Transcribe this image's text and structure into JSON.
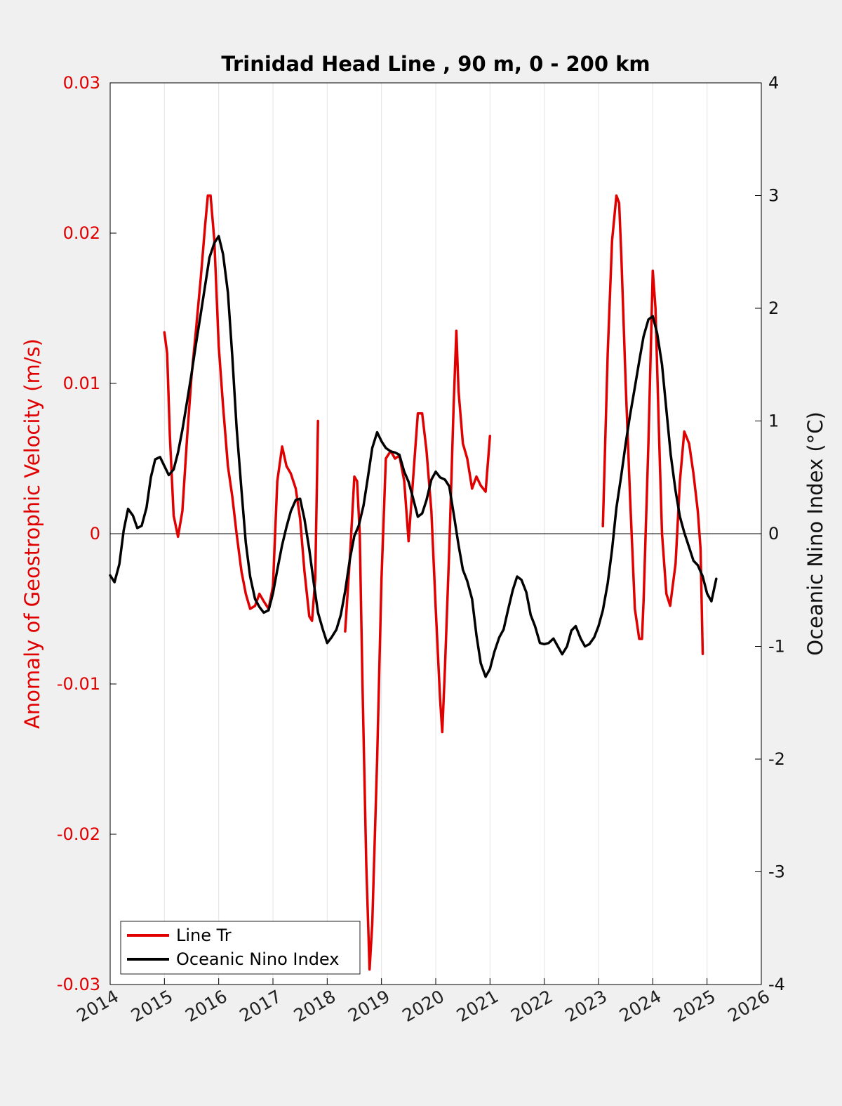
{
  "chart_data": {
    "type": "line",
    "title": "Trinidad Head Line , 90 m, 0 - 200 km",
    "xlim": [
      2014,
      2026
    ],
    "x_ticks": [
      "2014",
      "2015",
      "2016",
      "2017",
      "2018",
      "2019",
      "2020",
      "2021",
      "2022",
      "2023",
      "2024",
      "2025",
      "2026"
    ],
    "left_axis": {
      "label": "Anomaly of Geostrophic Velocity (m/s)",
      "ylim": [
        -0.03,
        0.03
      ],
      "ticks": [
        -0.03,
        -0.02,
        -0.01,
        0,
        0.01,
        0.02,
        0.03
      ],
      "tick_labels": [
        "-0.03",
        "-0.02",
        "-0.01",
        "0",
        "0.01",
        "0.02",
        "0.03"
      ],
      "color": "#e00000"
    },
    "right_axis": {
      "label": "Oceanic Nino Index (°C)",
      "ylim": [
        -4,
        4
      ],
      "ticks": [
        -4,
        -3,
        -2,
        -1,
        0,
        1,
        2,
        3,
        4
      ],
      "tick_labels": [
        "-4",
        "-3",
        "-2",
        "-1",
        "0",
        "1",
        "2",
        "3",
        "4"
      ],
      "color": "#000000"
    },
    "grid": "vertical",
    "zero_line": true,
    "legend": {
      "placement": "bottom-left",
      "entries": [
        "Line Tr",
        "Oceanic Nino Index"
      ]
    },
    "series": [
      {
        "name": "Line Tr",
        "axis": "left",
        "color": "#e00000",
        "segments": [
          [
            [
              2015.0,
              0.0134
            ],
            [
              2015.05,
              0.012
            ],
            [
              2015.1,
              0.0065
            ],
            [
              2015.17,
              0.0012
            ],
            [
              2015.25,
              -0.0002
            ],
            [
              2015.33,
              0.0015
            ],
            [
              2015.42,
              0.0065
            ],
            [
              2015.5,
              0.0105
            ],
            [
              2015.58,
              0.0135
            ],
            [
              2015.67,
              0.017
            ],
            [
              2015.75,
              0.0205
            ],
            [
              2015.8,
              0.0225
            ],
            [
              2015.85,
              0.0225
            ],
            [
              2015.92,
              0.0195
            ],
            [
              2016.0,
              0.0125
            ],
            [
              2016.08,
              0.0085
            ],
            [
              2016.17,
              0.0045
            ],
            [
              2016.25,
              0.0025
            ],
            [
              2016.33,
              0.0
            ],
            [
              2016.42,
              -0.0025
            ],
            [
              2016.5,
              -0.004
            ],
            [
              2016.58,
              -0.005
            ],
            [
              2016.67,
              -0.0048
            ],
            [
              2016.75,
              -0.004
            ],
            [
              2016.83,
              -0.0045
            ],
            [
              2016.92,
              -0.005
            ],
            [
              2017.0,
              -0.0035
            ],
            [
              2017.08,
              0.0035
            ],
            [
              2017.17,
              0.0058
            ],
            [
              2017.25,
              0.0045
            ],
            [
              2017.33,
              0.004
            ],
            [
              2017.42,
              0.003
            ],
            [
              2017.5,
              0.001
            ],
            [
              2017.58,
              -0.0025
            ],
            [
              2017.67,
              -0.0055
            ],
            [
              2017.72,
              -0.0058
            ],
            [
              2017.78,
              -0.003
            ],
            [
              2017.83,
              0.0075
            ]
          ],
          [
            [
              2018.33,
              -0.0065
            ],
            [
              2018.42,
              -0.0015
            ],
            [
              2018.5,
              0.0038
            ],
            [
              2018.55,
              0.0035
            ],
            [
              2018.6,
              0.0
            ],
            [
              2018.65,
              -0.01
            ],
            [
              2018.72,
              -0.022
            ],
            [
              2018.78,
              -0.029
            ],
            [
              2018.83,
              -0.026
            ],
            [
              2018.92,
              -0.015
            ],
            [
              2019.0,
              -0.003
            ],
            [
              2019.08,
              0.005
            ],
            [
              2019.17,
              0.0055
            ],
            [
              2019.25,
              0.005
            ],
            [
              2019.33,
              0.0052
            ],
            [
              2019.42,
              0.0035
            ],
            [
              2019.5,
              -0.0005
            ],
            [
              2019.58,
              0.0035
            ],
            [
              2019.67,
              0.008
            ],
            [
              2019.75,
              0.008
            ],
            [
              2019.83,
              0.0055
            ],
            [
              2019.92,
              0.0015
            ],
            [
              2020.0,
              -0.005
            ],
            [
              2020.08,
              -0.011
            ],
            [
              2020.12,
              -0.0132
            ],
            [
              2020.17,
              -0.009
            ],
            [
              2020.25,
              -0.001
            ],
            [
              2020.33,
              0.0085
            ],
            [
              2020.38,
              0.0135
            ],
            [
              2020.42,
              0.0095
            ],
            [
              2020.5,
              0.006
            ],
            [
              2020.58,
              0.005
            ],
            [
              2020.67,
              0.003
            ],
            [
              2020.75,
              0.0038
            ],
            [
              2020.83,
              0.0032
            ],
            [
              2020.92,
              0.0028
            ],
            [
              2021.0,
              0.0065
            ]
          ],
          [
            [
              2023.08,
              0.0005
            ],
            [
              2023.17,
              0.012
            ],
            [
              2023.25,
              0.0195
            ],
            [
              2023.33,
              0.0225
            ],
            [
              2023.38,
              0.022
            ],
            [
              2023.42,
              0.0185
            ],
            [
              2023.5,
              0.01
            ],
            [
              2023.58,
              0.0025
            ],
            [
              2023.67,
              -0.005
            ],
            [
              2023.75,
              -0.007
            ],
            [
              2023.8,
              -0.007
            ],
            [
              2023.83,
              -0.0045
            ],
            [
              2023.92,
              0.006
            ],
            [
              2024.0,
              0.0175
            ],
            [
              2024.05,
              0.015
            ],
            [
              2024.12,
              0.006
            ],
            [
              2024.17,
              0.0
            ],
            [
              2024.25,
              -0.004
            ],
            [
              2024.32,
              -0.0048
            ],
            [
              2024.42,
              -0.002
            ],
            [
              2024.5,
              0.0035
            ],
            [
              2024.58,
              0.0068
            ],
            [
              2024.67,
              0.006
            ],
            [
              2024.75,
              0.004
            ],
            [
              2024.83,
              0.0015
            ],
            [
              2024.88,
              -0.001
            ],
            [
              2024.92,
              -0.008
            ]
          ]
        ]
      },
      {
        "name": "Oceanic Nino Index",
        "axis": "right",
        "color": "#000000",
        "segments": [
          [
            [
              2014.0,
              -0.37
            ],
            [
              2014.08,
              -0.43
            ],
            [
              2014.17,
              -0.27
            ],
            [
              2014.25,
              0.03
            ],
            [
              2014.33,
              0.22
            ],
            [
              2014.42,
              0.16
            ],
            [
              2014.5,
              0.05
            ],
            [
              2014.58,
              0.07
            ],
            [
              2014.67,
              0.23
            ],
            [
              2014.75,
              0.5
            ],
            [
              2014.83,
              0.66
            ],
            [
              2014.92,
              0.68
            ],
            [
              2015.0,
              0.6
            ],
            [
              2015.08,
              0.52
            ],
            [
              2015.17,
              0.57
            ],
            [
              2015.25,
              0.72
            ],
            [
              2015.33,
              0.92
            ],
            [
              2015.42,
              1.18
            ],
            [
              2015.5,
              1.42
            ],
            [
              2015.58,
              1.68
            ],
            [
              2015.67,
              1.95
            ],
            [
              2015.75,
              2.2
            ],
            [
              2015.83,
              2.45
            ],
            [
              2015.92,
              2.58
            ],
            [
              2016.0,
              2.64
            ],
            [
              2016.08,
              2.48
            ],
            [
              2016.17,
              2.14
            ],
            [
              2016.25,
              1.58
            ],
            [
              2016.33,
              0.94
            ],
            [
              2016.42,
              0.39
            ],
            [
              2016.5,
              -0.08
            ],
            [
              2016.58,
              -0.38
            ],
            [
              2016.67,
              -0.58
            ],
            [
              2016.75,
              -0.65
            ],
            [
              2016.83,
              -0.7
            ],
            [
              2016.92,
              -0.68
            ],
            [
              2017.0,
              -0.53
            ],
            [
              2017.08,
              -0.32
            ],
            [
              2017.17,
              -0.1
            ],
            [
              2017.25,
              0.06
            ],
            [
              2017.33,
              0.2
            ],
            [
              2017.42,
              0.3
            ],
            [
              2017.5,
              0.31
            ],
            [
              2017.58,
              0.13
            ],
            [
              2017.67,
              -0.14
            ],
            [
              2017.75,
              -0.43
            ],
            [
              2017.83,
              -0.7
            ],
            [
              2017.92,
              -0.85
            ],
            [
              2018.0,
              -0.97
            ],
            [
              2018.08,
              -0.92
            ],
            [
              2018.17,
              -0.85
            ],
            [
              2018.25,
              -0.72
            ],
            [
              2018.33,
              -0.51
            ],
            [
              2018.42,
              -0.22
            ],
            [
              2018.5,
              -0.02
            ],
            [
              2018.58,
              0.07
            ],
            [
              2018.67,
              0.25
            ],
            [
              2018.75,
              0.5
            ],
            [
              2018.83,
              0.76
            ],
            [
              2018.92,
              0.9
            ],
            [
              2019.0,
              0.82
            ],
            [
              2019.08,
              0.76
            ],
            [
              2019.17,
              0.73
            ],
            [
              2019.25,
              0.72
            ],
            [
              2019.33,
              0.7
            ],
            [
              2019.42,
              0.55
            ],
            [
              2019.5,
              0.46
            ],
            [
              2019.58,
              0.32
            ],
            [
              2019.67,
              0.15
            ],
            [
              2019.75,
              0.18
            ],
            [
              2019.83,
              0.3
            ],
            [
              2019.92,
              0.48
            ],
            [
              2020.0,
              0.55
            ],
            [
              2020.08,
              0.5
            ],
            [
              2020.17,
              0.48
            ],
            [
              2020.25,
              0.42
            ],
            [
              2020.33,
              0.18
            ],
            [
              2020.42,
              -0.1
            ],
            [
              2020.5,
              -0.32
            ],
            [
              2020.58,
              -0.42
            ],
            [
              2020.67,
              -0.58
            ],
            [
              2020.75,
              -0.9
            ],
            [
              2020.83,
              -1.15
            ],
            [
              2020.92,
              -1.27
            ],
            [
              2021.0,
              -1.2
            ],
            [
              2021.08,
              -1.05
            ],
            [
              2021.17,
              -0.92
            ],
            [
              2021.25,
              -0.85
            ],
            [
              2021.33,
              -0.68
            ],
            [
              2021.42,
              -0.5
            ],
            [
              2021.5,
              -0.38
            ],
            [
              2021.58,
              -0.41
            ],
            [
              2021.67,
              -0.52
            ],
            [
              2021.75,
              -0.72
            ],
            [
              2021.83,
              -0.82
            ],
            [
              2021.92,
              -0.97
            ],
            [
              2022.0,
              -0.98
            ],
            [
              2022.08,
              -0.97
            ],
            [
              2022.17,
              -0.93
            ],
            [
              2022.25,
              -1.0
            ],
            [
              2022.33,
              -1.07
            ],
            [
              2022.42,
              -1.0
            ],
            [
              2022.5,
              -0.86
            ],
            [
              2022.58,
              -0.82
            ],
            [
              2022.67,
              -0.93
            ],
            [
              2022.75,
              -1.0
            ],
            [
              2022.83,
              -0.98
            ],
            [
              2022.92,
              -0.92
            ],
            [
              2023.0,
              -0.82
            ],
            [
              2023.08,
              -0.68
            ],
            [
              2023.17,
              -0.44
            ],
            [
              2023.25,
              -0.14
            ],
            [
              2023.33,
              0.23
            ],
            [
              2023.42,
              0.52
            ],
            [
              2023.5,
              0.8
            ],
            [
              2023.58,
              1.05
            ],
            [
              2023.67,
              1.3
            ],
            [
              2023.75,
              1.53
            ],
            [
              2023.83,
              1.75
            ],
            [
              2023.92,
              1.9
            ],
            [
              2024.0,
              1.93
            ],
            [
              2024.08,
              1.78
            ],
            [
              2024.17,
              1.5
            ],
            [
              2024.25,
              1.1
            ],
            [
              2024.33,
              0.7
            ],
            [
              2024.42,
              0.38
            ],
            [
              2024.5,
              0.15
            ],
            [
              2024.58,
              0.01
            ],
            [
              2024.67,
              -0.12
            ],
            [
              2024.75,
              -0.24
            ],
            [
              2024.83,
              -0.28
            ],
            [
              2024.92,
              -0.38
            ],
            [
              2025.0,
              -0.53
            ],
            [
              2025.08,
              -0.6
            ],
            [
              2025.17,
              -0.4
            ]
          ]
        ]
      }
    ]
  }
}
